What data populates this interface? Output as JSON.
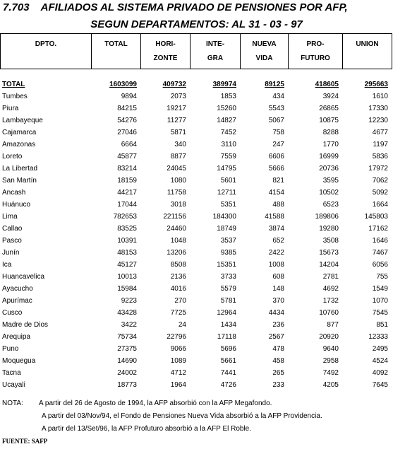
{
  "title_line1": "7.703    AFILIADOS AL SISTEMA PRIVADO DE PENSIONES POR AFP,",
  "title_line2": "SEGUN DEPARTAMENTOS: AL 31 - 03 - 97",
  "headers": {
    "dpto": "DPTO.",
    "total": "TOTAL",
    "horizonte_a": "HORI-",
    "horizonte_b": "ZONTE",
    "integra_a": "INTE-",
    "integra_b": "GRA",
    "nueva_a": "NUEVA",
    "nueva_b": "VIDA",
    "profuturo_a": "PRO-",
    "profuturo_b": "FUTURO",
    "union": "UNION"
  },
  "rows": [
    {
      "name": "TOTAL",
      "total": "1603099",
      "horizonte": "409732",
      "integra": "389974",
      "nueva_vida": "89125",
      "profuturo": "418605",
      "union": "295663"
    },
    {
      "name": "Tumbes",
      "total": "9894",
      "horizonte": "2073",
      "integra": "1853",
      "nueva_vida": "434",
      "profuturo": "3924",
      "union": "1610"
    },
    {
      "name": "Piura",
      "total": "84215",
      "horizonte": "19217",
      "integra": "15260",
      "nueva_vida": "5543",
      "profuturo": "26865",
      "union": "17330"
    },
    {
      "name": "Lambayeque",
      "total": "54276",
      "horizonte": "11277",
      "integra": "14827",
      "nueva_vida": "5067",
      "profuturo": "10875",
      "union": "12230"
    },
    {
      "name": "Cajamarca",
      "total": "27046",
      "horizonte": "5871",
      "integra": "7452",
      "nueva_vida": "758",
      "profuturo": "8288",
      "union": "4677"
    },
    {
      "name": "Amazonas",
      "total": "6664",
      "horizonte": "340",
      "integra": "3110",
      "nueva_vida": "247",
      "profuturo": "1770",
      "union": "1197"
    },
    {
      "name": "Loreto",
      "total": "45877",
      "horizonte": "8877",
      "integra": "7559",
      "nueva_vida": "6606",
      "profuturo": "16999",
      "union": "5836"
    },
    {
      "name": "La Libertad",
      "total": "83214",
      "horizonte": "24045",
      "integra": "14795",
      "nueva_vida": "5666",
      "profuturo": "20736",
      "union": "17972"
    },
    {
      "name": "San Martín",
      "total": "18159",
      "horizonte": "1080",
      "integra": "5601",
      "nueva_vida": "821",
      "profuturo": "3595",
      "union": "7062"
    },
    {
      "name": "Ancash",
      "total": "44217",
      "horizonte": "11758",
      "integra": "12711",
      "nueva_vida": "4154",
      "profuturo": "10502",
      "union": "5092"
    },
    {
      "name": "Huánuco",
      "total": "17044",
      "horizonte": "3018",
      "integra": "5351",
      "nueva_vida": "488",
      "profuturo": "6523",
      "union": "1664"
    },
    {
      "name": "Lima",
      "total": "782653",
      "horizonte": "221156",
      "integra": "184300",
      "nueva_vida": "41588",
      "profuturo": "189806",
      "union": "145803"
    },
    {
      "name": "Callao",
      "total": "83525",
      "horizonte": "24460",
      "integra": "18749",
      "nueva_vida": "3874",
      "profuturo": "19280",
      "union": "17162"
    },
    {
      "name": "Pasco",
      "total": "10391",
      "horizonte": "1048",
      "integra": "3537",
      "nueva_vida": "652",
      "profuturo": "3508",
      "union": "1646"
    },
    {
      "name": "Junín",
      "total": "48153",
      "horizonte": "13206",
      "integra": "9385",
      "nueva_vida": "2422",
      "profuturo": "15673",
      "union": "7467"
    },
    {
      "name": "Ica",
      "total": "45127",
      "horizonte": "8508",
      "integra": "15351",
      "nueva_vida": "1008",
      "profuturo": "14204",
      "union": "6056"
    },
    {
      "name": "Huancavelica",
      "total": "10013",
      "horizonte": "2136",
      "integra": "3733",
      "nueva_vida": "608",
      "profuturo": "2781",
      "union": "755"
    },
    {
      "name": "Ayacucho",
      "total": "15984",
      "horizonte": "4016",
      "integra": "5579",
      "nueva_vida": "148",
      "profuturo": "4692",
      "union": "1549"
    },
    {
      "name": "Apurímac",
      "total": "9223",
      "horizonte": "270",
      "integra": "5781",
      "nueva_vida": "370",
      "profuturo": "1732",
      "union": "1070"
    },
    {
      "name": "Cusco",
      "total": "43428",
      "horizonte": "7725",
      "integra": "12964",
      "nueva_vida": "4434",
      "profuturo": "10760",
      "union": "7545"
    },
    {
      "name": "Madre de Dios",
      "total": "3422",
      "horizonte": "24",
      "integra": "1434",
      "nueva_vida": "236",
      "profuturo": "877",
      "union": "851"
    },
    {
      "name": "Arequipa",
      "total": "75734",
      "horizonte": "22796",
      "integra": "17118",
      "nueva_vida": "2567",
      "profuturo": "20920",
      "union": "12333"
    },
    {
      "name": "Puno",
      "total": "27375",
      "horizonte": "9066",
      "integra": "5696",
      "nueva_vida": "478",
      "profuturo": "9640",
      "union": "2495"
    },
    {
      "name": "Moquegua",
      "total": "14690",
      "horizonte": "1089",
      "integra": "5661",
      "nueva_vida": "458",
      "profuturo": "2958",
      "union": "4524"
    },
    {
      "name": "Tacna",
      "total": "24002",
      "horizonte": "4712",
      "integra": "7441",
      "nueva_vida": "265",
      "profuturo": "7492",
      "union": "4092"
    },
    {
      "name": "Ucayali",
      "total": "18773",
      "horizonte": "1964",
      "integra": "4726",
      "nueva_vida": "233",
      "profuturo": "4205",
      "union": "7645"
    }
  ],
  "notes": {
    "label": "NOTA:",
    "line1": "A partir del 26 de Agosto de 1994, la AFP absorbió con la AFP Megafondo.",
    "line2": "A partir del 03/Nov/94, el Fondo de Pensiones Nueva Vida absorbió a la AFP Providencia.",
    "line3": "A partir del 13/Set/96, la AFP Profuturo absorbió a la AFP El Roble."
  },
  "source": "FUENTE: SAFP"
}
